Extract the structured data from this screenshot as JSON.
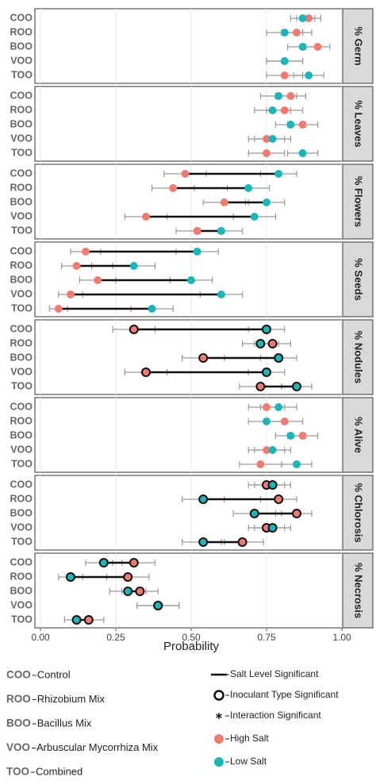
{
  "chart_data": {
    "type": "dot",
    "x_label": "Probability",
    "xlim": [
      0,
      1
    ],
    "xticks": [
      {
        "value": 0,
        "label": "0.00"
      },
      {
        "value": 0.25,
        "label": "0.25"
      },
      {
        "value": 0.5,
        "label": "0.50"
      },
      {
        "value": 0.75,
        "label": "0.75"
      },
      {
        "value": 1,
        "label": "1.00"
      }
    ],
    "grid": true,
    "categories": [
      "COO",
      "ROO",
      "BOO",
      "VOO",
      "TOO"
    ],
    "category_names": [
      "Control",
      "Rhizobium Mix",
      "Bacillus Mix",
      "Arbuscular Mycorrhiza Mix",
      "Combined"
    ],
    "series": [
      {
        "name": "High Salt",
        "color": "#f07b72"
      },
      {
        "name": "Low Salt",
        "color": "#1db5b8"
      }
    ],
    "significance": [
      "Salt Level Significant",
      "Inoculant Type Significant",
      "Interaction Significant"
    ],
    "panels": [
      {
        "title": "% Germ",
        "inoculant_significant": false,
        "salt_significant": [
          false,
          false,
          false,
          false,
          false
        ],
        "series": [
          {
            "values": [
              0.89,
              0.85,
              0.92,
              0.81,
              0.81
            ],
            "errors": [
              0.04,
              0.05,
              0.04,
              0.06,
              0.06
            ]
          },
          {
            "values": [
              0.87,
              0.81,
              0.87,
              0.81,
              0.89
            ],
            "errors": [
              0.04,
              0.06,
              0.05,
              0.06,
              0.05
            ]
          }
        ]
      },
      {
        "title": "% Leaves",
        "inoculant_significant": false,
        "salt_significant": [
          false,
          false,
          false,
          false,
          false
        ],
        "series": [
          {
            "values": [
              0.83,
              0.81,
              0.87,
              0.75,
              0.75
            ],
            "errors": [
              0.05,
              0.06,
              0.05,
              0.06,
              0.06
            ]
          },
          {
            "values": [
              0.79,
              0.77,
              0.83,
              0.77,
              0.87
            ],
            "errors": [
              0.06,
              0.06,
              0.05,
              0.06,
              0.05
            ]
          }
        ]
      },
      {
        "title": "% Flowers",
        "inoculant_significant": false,
        "salt_significant": [
          true,
          true,
          true,
          true,
          true
        ],
        "series": [
          {
            "values": [
              0.48,
              0.44,
              0.61,
              0.35,
              0.52
            ],
            "errors": [
              0.07,
              0.07,
              0.07,
              0.07,
              0.07
            ]
          },
          {
            "values": [
              0.79,
              0.69,
              0.75,
              0.71,
              0.6
            ],
            "errors": [
              0.06,
              0.07,
              0.06,
              0.07,
              0.07
            ]
          }
        ]
      },
      {
        "title": "% Seeds",
        "inoculant_significant": false,
        "salt_significant": [
          true,
          true,
          true,
          true,
          true
        ],
        "series": [
          {
            "values": [
              0.15,
              0.12,
              0.19,
              0.1,
              0.06
            ],
            "errors": [
              0.05,
              0.05,
              0.06,
              0.04,
              0.03
            ]
          },
          {
            "values": [
              0.52,
              0.31,
              0.5,
              0.6,
              0.37
            ],
            "errors": [
              0.07,
              0.07,
              0.07,
              0.07,
              0.07
            ]
          }
        ]
      },
      {
        "title": "% Nodules",
        "inoculant_significant": true,
        "salt_significant": [
          true,
          false,
          true,
          true,
          true
        ],
        "series": [
          {
            "values": [
              0.31,
              0.77,
              0.54,
              0.35,
              0.73
            ],
            "errors": [
              0.07,
              0.06,
              0.07,
              0.07,
              0.07
            ]
          },
          {
            "values": [
              0.75,
              0.73,
              0.79,
              0.75,
              0.85
            ],
            "errors": [
              0.06,
              0.06,
              0.06,
              0.06,
              0.05
            ]
          }
        ]
      },
      {
        "title": "% Alive",
        "inoculant_significant": false,
        "salt_significant": [
          false,
          false,
          false,
          false,
          false
        ],
        "series": [
          {
            "values": [
              0.75,
              0.81,
              0.87,
              0.75,
              0.73
            ],
            "errors": [
              0.06,
              0.06,
              0.05,
              0.06,
              0.07
            ]
          },
          {
            "values": [
              0.79,
              0.75,
              0.83,
              0.77,
              0.85
            ],
            "errors": [
              0.06,
              0.06,
              0.05,
              0.06,
              0.05
            ]
          }
        ]
      },
      {
        "title": "% Chlorosis",
        "inoculant_significant": true,
        "salt_significant": [
          false,
          true,
          true,
          false,
          true
        ],
        "series": [
          {
            "values": [
              0.75,
              0.79,
              0.85,
              0.75,
              0.67
            ],
            "errors": [
              0.06,
              0.06,
              0.05,
              0.06,
              0.07
            ]
          },
          {
            "values": [
              0.77,
              0.54,
              0.71,
              0.77,
              0.54
            ],
            "errors": [
              0.06,
              0.07,
              0.07,
              0.06,
              0.07
            ]
          }
        ]
      },
      {
        "title": "% Necrosis",
        "inoculant_significant": true,
        "salt_significant": [
          true,
          true,
          true,
          false,
          true
        ],
        "series": [
          {
            "values": [
              0.31,
              0.29,
              0.33,
              0.39,
              0.16
            ],
            "errors": [
              0.07,
              0.07,
              0.06,
              0.07,
              0.05
            ]
          },
          {
            "values": [
              0.21,
              0.1,
              0.29,
              0.39,
              0.12
            ],
            "errors": [
              0.06,
              0.04,
              0.06,
              0.07,
              0.04
            ]
          }
        ]
      }
    ]
  }
}
